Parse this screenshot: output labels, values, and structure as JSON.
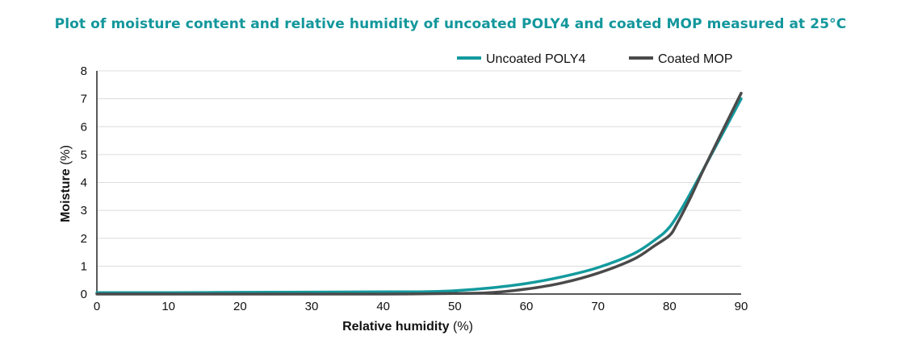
{
  "chart_data": {
    "type": "line",
    "title": "Plot of moisture content and relative humidity of uncoated POLY4 and coated MOP measured at 25°C",
    "xlabel": "Relative humidity",
    "xlabel_unit": "(%)",
    "ylabel": "Moisture",
    "ylabel_unit": "(%)",
    "xlim": [
      0,
      90
    ],
    "ylim": [
      0,
      8
    ],
    "xticks": [
      0,
      10,
      20,
      30,
      40,
      50,
      60,
      70,
      80,
      90
    ],
    "yticks": [
      0,
      1,
      2,
      3,
      4,
      5,
      6,
      7,
      8
    ],
    "grid": "horizontal",
    "legend_position": "top-right",
    "series": [
      {
        "name": "Uncoated POLY4",
        "color": "#139a9e",
        "points": [
          [
            0,
            0.05
          ],
          [
            10,
            0.05
          ],
          [
            20,
            0.06
          ],
          [
            30,
            0.07
          ],
          [
            40,
            0.08
          ],
          [
            45,
            0.08
          ],
          [
            50,
            0.12
          ],
          [
            55,
            0.22
          ],
          [
            60,
            0.38
          ],
          [
            65,
            0.62
          ],
          [
            70,
            0.95
          ],
          [
            75,
            1.45
          ],
          [
            78,
            1.95
          ],
          [
            80,
            2.4
          ],
          [
            82,
            3.2
          ],
          [
            85,
            4.6
          ],
          [
            90,
            7.0
          ]
        ]
      },
      {
        "name": "Coated MOP",
        "color": "#4a4a4a",
        "points": [
          [
            0,
            0.0
          ],
          [
            10,
            0.0
          ],
          [
            20,
            0.0
          ],
          [
            30,
            0.0
          ],
          [
            40,
            0.0
          ],
          [
            50,
            0.02
          ],
          [
            55,
            0.05
          ],
          [
            60,
            0.18
          ],
          [
            65,
            0.4
          ],
          [
            70,
            0.75
          ],
          [
            75,
            1.25
          ],
          [
            78,
            1.75
          ],
          [
            80,
            2.1
          ],
          [
            81,
            2.5
          ],
          [
            83,
            3.5
          ],
          [
            85,
            4.6
          ],
          [
            90,
            7.2
          ]
        ]
      }
    ]
  }
}
